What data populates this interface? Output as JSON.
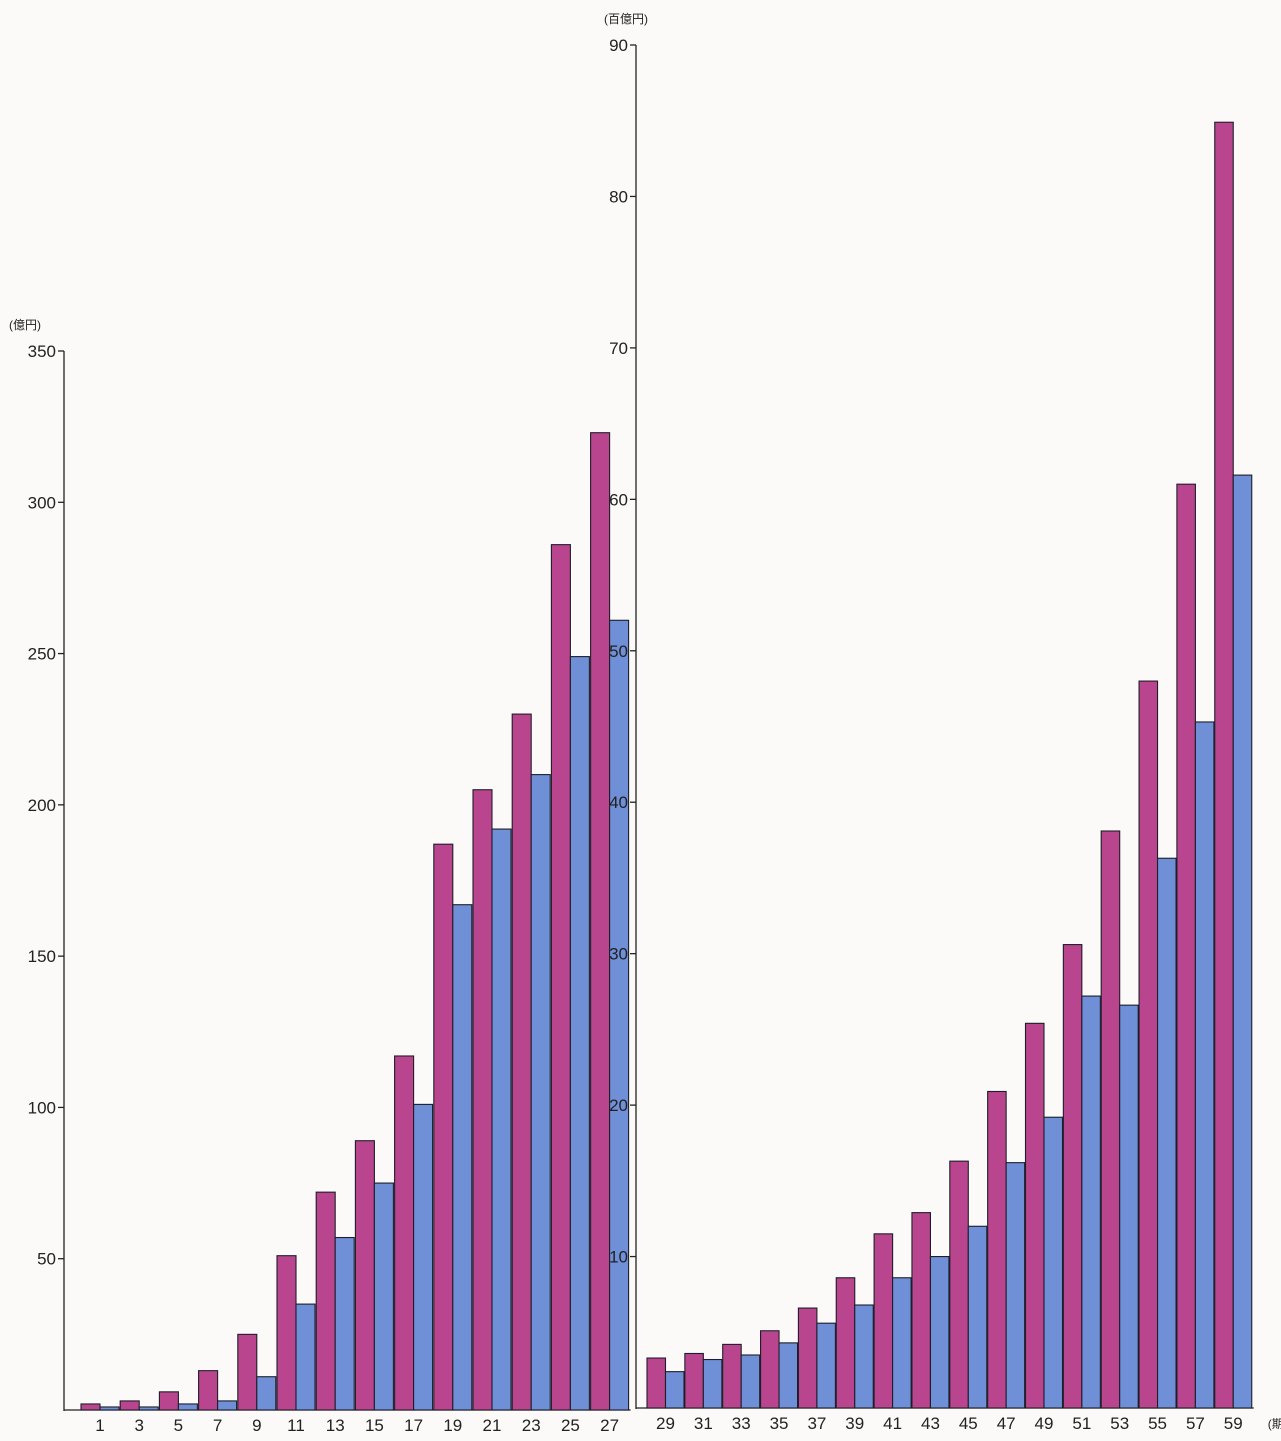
{
  "colors": {
    "series_a": "#b8458d",
    "series_b": "#6f8fd6",
    "axis": "#222222",
    "background": "#fbfaf8"
  },
  "chart_data": [
    {
      "type": "bar",
      "y_unit": "(億円)",
      "x_unit": "",
      "ylim": [
        0,
        350
      ],
      "y_ticks": [
        50,
        100,
        150,
        200,
        250,
        300,
        350
      ],
      "x_tick_labels": [
        "1",
        "3",
        "5",
        "7",
        "9",
        "11",
        "13",
        "15",
        "17",
        "19",
        "21",
        "23",
        "25",
        "27"
      ],
      "categories": [
        "1",
        "3",
        "5",
        "7",
        "9",
        "11",
        "13",
        "15",
        "17",
        "19",
        "21",
        "23",
        "25",
        "27"
      ],
      "series": [
        {
          "values": [
            2,
            3,
            6,
            13,
            25,
            51,
            72,
            89,
            117,
            187,
            205,
            230,
            286,
            323
          ],
          "color": "#b8458d"
        },
        {
          "values": [
            1,
            1,
            2,
            3,
            11,
            35,
            57,
            75,
            101,
            167,
            192,
            210,
            249,
            261
          ],
          "color": "#6f8fd6"
        }
      ],
      "legend": "none",
      "grid": false
    },
    {
      "type": "bar",
      "y_unit": "(百億円)",
      "x_unit": "(期)",
      "ylim": [
        0,
        90
      ],
      "y_ticks": [
        10,
        20,
        30,
        40,
        50,
        60,
        70,
        80,
        90
      ],
      "x_tick_labels": [
        "29",
        "31",
        "33",
        "35",
        "37",
        "39",
        "41",
        "43",
        "45",
        "47",
        "49",
        "51",
        "53",
        "55",
        "57",
        "59"
      ],
      "categories": [
        "29",
        "31",
        "33",
        "35",
        "37",
        "39",
        "41",
        "43",
        "45",
        "47",
        "49",
        "51",
        "53",
        "55",
        "57",
        "59"
      ],
      "series": [
        {
          "values": [
            3.3,
            3.6,
            4.2,
            5.1,
            6.6,
            8.6,
            11.5,
            12.9,
            16.3,
            20.9,
            25.4,
            30.6,
            38.1,
            48.0,
            61.0,
            84.9
          ],
          "color": "#b8458d"
        },
        {
          "values": [
            2.4,
            3.2,
            3.5,
            4.3,
            5.6,
            6.8,
            8.6,
            10.0,
            12.0,
            16.2,
            19.2,
            27.2,
            26.6,
            36.3,
            45.3,
            61.6
          ],
          "color": "#6f8fd6"
        }
      ],
      "legend": "none",
      "grid": false
    }
  ]
}
